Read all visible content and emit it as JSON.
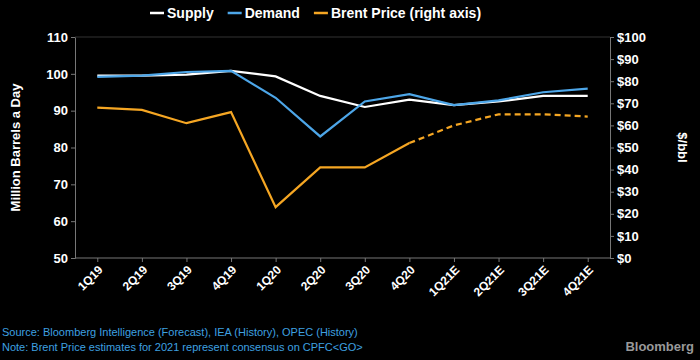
{
  "chart_data": {
    "type": "line",
    "categories": [
      "1Q19",
      "2Q19",
      "3Q19",
      "4Q19",
      "1Q20",
      "2Q20",
      "3Q20",
      "4Q20",
      "1Q21E",
      "2Q21E",
      "3Q21E",
      "4Q21E"
    ],
    "series": [
      {
        "name": "Supply",
        "color": "#ffffff",
        "values": [
          99.5,
          99.5,
          99.8,
          100.8,
          99.3,
          94,
          91,
          93,
          91.5,
          92.5,
          94,
          94
        ]
      },
      {
        "name": "Demand",
        "color": "#4da6e8",
        "values": [
          99.2,
          99.5,
          100.5,
          100.8,
          93.5,
          83,
          92.5,
          94.5,
          91.5,
          92.8,
          95,
          96
        ]
      },
      {
        "name": "Brent Price (right axis)",
        "color": "#f5a623",
        "axis": "y2",
        "line_style": "solid",
        "values": [
          68,
          67,
          61,
          66,
          23,
          41,
          41,
          52,
          null,
          null,
          null,
          null
        ]
      },
      {
        "color": "#f5a623",
        "axis": "y2",
        "line_style": "dashed",
        "values": [
          null,
          null,
          null,
          null,
          null,
          null,
          null,
          52,
          60,
          65,
          65,
          64
        ]
      }
    ],
    "y_label": "Million Barrels a Day",
    "y2_label": "$/bbl",
    "ylim": [
      50,
      110
    ],
    "yticks": [
      50,
      60,
      70,
      80,
      90,
      100,
      110
    ],
    "y2lim": [
      0,
      100
    ],
    "y2ticks": [
      {
        "value": 0,
        "label": "$0"
      },
      {
        "value": 10,
        "label": "$10"
      },
      {
        "value": 20,
        "label": "$20"
      },
      {
        "value": 30,
        "label": "$30"
      },
      {
        "value": 40,
        "label": "$40"
      },
      {
        "value": 50,
        "label": "$50"
      },
      {
        "value": 60,
        "label": "$60"
      },
      {
        "value": 70,
        "label": "$70"
      },
      {
        "value": 80,
        "label": "$80"
      },
      {
        "value": 90,
        "label": "$90"
      },
      {
        "value": 100,
        "label": "$100"
      }
    ],
    "grid": false,
    "legend": "top",
    "source": "Source: Bloomberg Intelligence (Forecast), IEA (History), OPEC (History)",
    "note": "Note: Brent Price estimates for 2021 represent consensus on CPFC<GO>",
    "watermark": "Bloomberg"
  }
}
